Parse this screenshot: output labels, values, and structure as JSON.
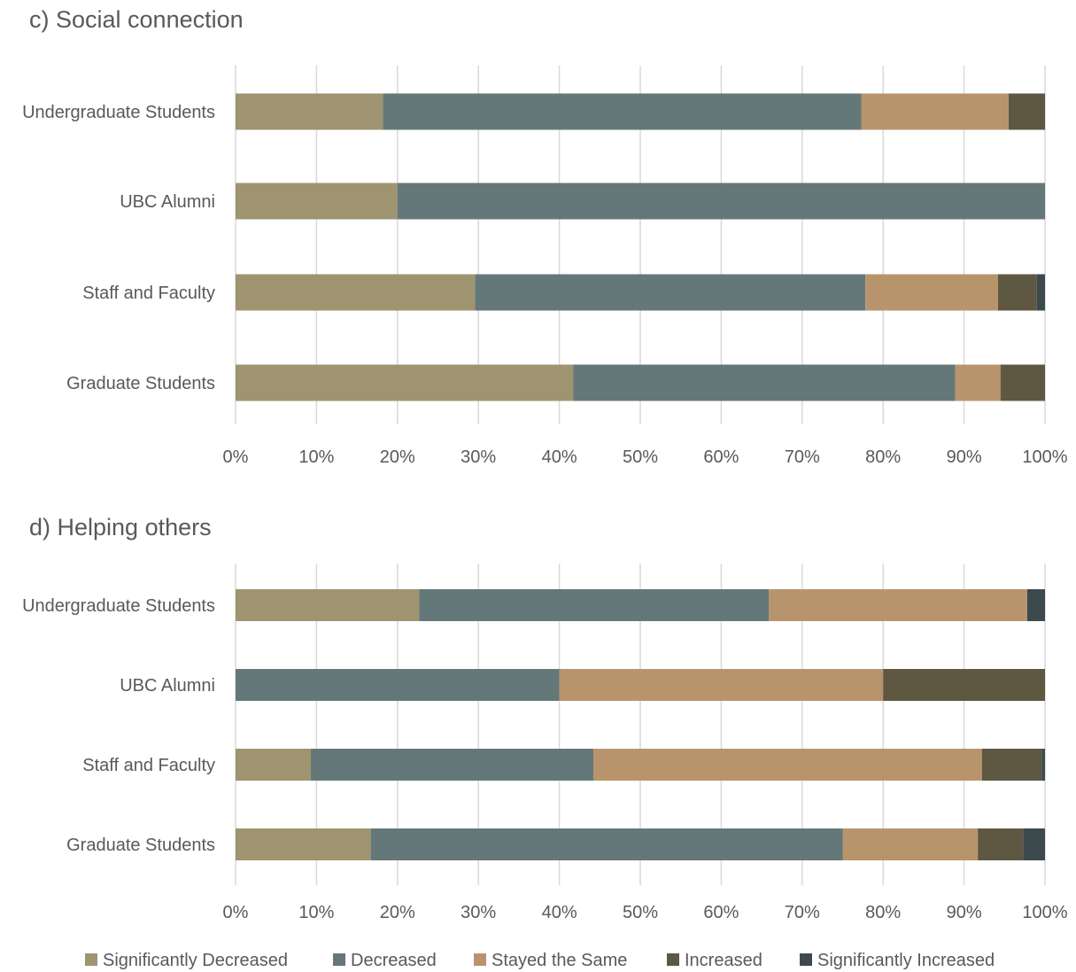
{
  "colors": {
    "Significantly Decreased": "#9e9470",
    "Decreased": "#64787a",
    "Stayed the Same": "#b8946d",
    "Increased": "#5e5842",
    "Significantly Increased": "#3c4a4e"
  },
  "legend": [
    "Significantly Decreased",
    "Decreased",
    "Stayed the Same",
    "Increased",
    "Significantly Increased"
  ],
  "chart_data": [
    {
      "type": "bar",
      "orientation": "horizontal",
      "stacked": "percent",
      "title": "c) Social connection",
      "xlabel": "",
      "ylabel": "",
      "xlim": [
        0,
        100
      ],
      "x_ticks": [
        "0%",
        "10%",
        "20%",
        "30%",
        "40%",
        "50%",
        "60%",
        "70%",
        "80%",
        "90%",
        "100%"
      ],
      "grid": true,
      "legend_position": "bottom",
      "categories": [
        "Undergraduate Students",
        "UBC Alumni",
        "Staff and Faculty",
        "Graduate Students"
      ],
      "series": [
        {
          "name": "Significantly Decreased",
          "values": [
            18.2,
            20.0,
            29.6,
            41.7
          ]
        },
        {
          "name": "Decreased",
          "values": [
            59.1,
            80.0,
            48.2,
            47.2
          ]
        },
        {
          "name": "Stayed the Same",
          "values": [
            18.2,
            0,
            16.4,
            5.6
          ]
        },
        {
          "name": "Increased",
          "values": [
            4.5,
            0,
            4.8,
            5.5
          ]
        },
        {
          "name": "Significantly Increased",
          "values": [
            0,
            0,
            1.0,
            0
          ]
        }
      ]
    },
    {
      "type": "bar",
      "orientation": "horizontal",
      "stacked": "percent",
      "title": "d) Helping others",
      "xlabel": "",
      "ylabel": "",
      "xlim": [
        0,
        100
      ],
      "x_ticks": [
        "0%",
        "10%",
        "20%",
        "30%",
        "40%",
        "50%",
        "60%",
        "70%",
        "80%",
        "90%",
        "100%"
      ],
      "grid": true,
      "legend_position": "bottom",
      "categories": [
        "Undergraduate Students",
        "UBC Alumni",
        "Staff and Faculty",
        "Graduate Students"
      ],
      "series": [
        {
          "name": "Significantly Decreased",
          "values": [
            22.7,
            0,
            9.3,
            16.7
          ]
        },
        {
          "name": "Decreased",
          "values": [
            43.2,
            40.0,
            34.9,
            58.3
          ]
        },
        {
          "name": "Stayed the Same",
          "values": [
            31.9,
            40.0,
            48.0,
            16.7
          ]
        },
        {
          "name": "Increased",
          "values": [
            0,
            20.0,
            7.4,
            5.6
          ]
        },
        {
          "name": "Significantly Increased",
          "values": [
            2.2,
            0,
            0.4,
            2.7
          ]
        }
      ]
    }
  ]
}
